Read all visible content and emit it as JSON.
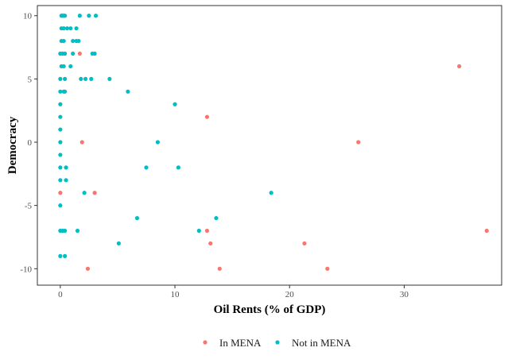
{
  "chart_data": {
    "type": "scatter",
    "xlabel": "Oil Rents (% of GDP)",
    "ylabel": "Democracy",
    "xlim": [
      -2,
      38.5
    ],
    "ylim": [
      -11.3,
      10.8
    ],
    "xticks": [
      0,
      10,
      20,
      30
    ],
    "yticks": [
      10,
      5,
      0,
      -5,
      -10
    ],
    "xtick_labels": [
      "0",
      "10",
      "20",
      "30"
    ],
    "ytick_labels": [
      "10",
      "5",
      "0",
      "-5",
      "-10"
    ],
    "grid": false,
    "legend_position": "bottom",
    "series": [
      {
        "name": "In MENA",
        "color": "#F8766D",
        "points": [
          [
            1.7,
            7
          ],
          [
            34.8,
            6
          ],
          [
            12.8,
            2
          ],
          [
            1.9,
            0
          ],
          [
            26.0,
            0
          ],
          [
            0.0,
            -4
          ],
          [
            3.0,
            -4
          ],
          [
            12.8,
            -7
          ],
          [
            37.2,
            -7
          ],
          [
            13.1,
            -8
          ],
          [
            21.3,
            -8
          ],
          [
            2.4,
            -10
          ],
          [
            13.9,
            -10
          ],
          [
            23.3,
            -10
          ]
        ]
      },
      {
        "name": "Not in MENA",
        "color": "#00BFC4",
        "points": [
          [
            0.1,
            10
          ],
          [
            0.2,
            10
          ],
          [
            0.3,
            10
          ],
          [
            0.4,
            10
          ],
          [
            1.7,
            10
          ],
          [
            2.5,
            10
          ],
          [
            3.1,
            10
          ],
          [
            0.1,
            9
          ],
          [
            0.3,
            9
          ],
          [
            0.6,
            9
          ],
          [
            0.9,
            9
          ],
          [
            1.4,
            9
          ],
          [
            0.1,
            8
          ],
          [
            0.3,
            8
          ],
          [
            1.1,
            8
          ],
          [
            1.4,
            8
          ],
          [
            1.6,
            8
          ],
          [
            0.0,
            7
          ],
          [
            0.2,
            7
          ],
          [
            0.4,
            7
          ],
          [
            1.1,
            7
          ],
          [
            2.8,
            7
          ],
          [
            3.0,
            7
          ],
          [
            0.1,
            6
          ],
          [
            0.3,
            6
          ],
          [
            0.9,
            6
          ],
          [
            0.0,
            5
          ],
          [
            0.4,
            5
          ],
          [
            1.8,
            5
          ],
          [
            2.2,
            5
          ],
          [
            2.7,
            5
          ],
          [
            4.3,
            5
          ],
          [
            0.0,
            4
          ],
          [
            0.3,
            4
          ],
          [
            0.4,
            4
          ],
          [
            5.9,
            4
          ],
          [
            0.0,
            3
          ],
          [
            10.0,
            3
          ],
          [
            0.0,
            2
          ],
          [
            0.0,
            1
          ],
          [
            0.0,
            0
          ],
          [
            8.5,
            0
          ],
          [
            0.0,
            -1
          ],
          [
            0.0,
            -2
          ],
          [
            0.5,
            -2
          ],
          [
            7.5,
            -2
          ],
          [
            10.3,
            -2
          ],
          [
            0.0,
            -3
          ],
          [
            0.5,
            -3
          ],
          [
            2.1,
            -4
          ],
          [
            18.4,
            -4
          ],
          [
            0.0,
            -5
          ],
          [
            6.7,
            -6
          ],
          [
            13.6,
            -6
          ],
          [
            0.0,
            -7
          ],
          [
            0.2,
            -7
          ],
          [
            0.4,
            -7
          ],
          [
            1.5,
            -7
          ],
          [
            12.1,
            -7
          ],
          [
            5.1,
            -8
          ],
          [
            0.0,
            -9
          ],
          [
            0.4,
            -9
          ]
        ]
      }
    ]
  }
}
